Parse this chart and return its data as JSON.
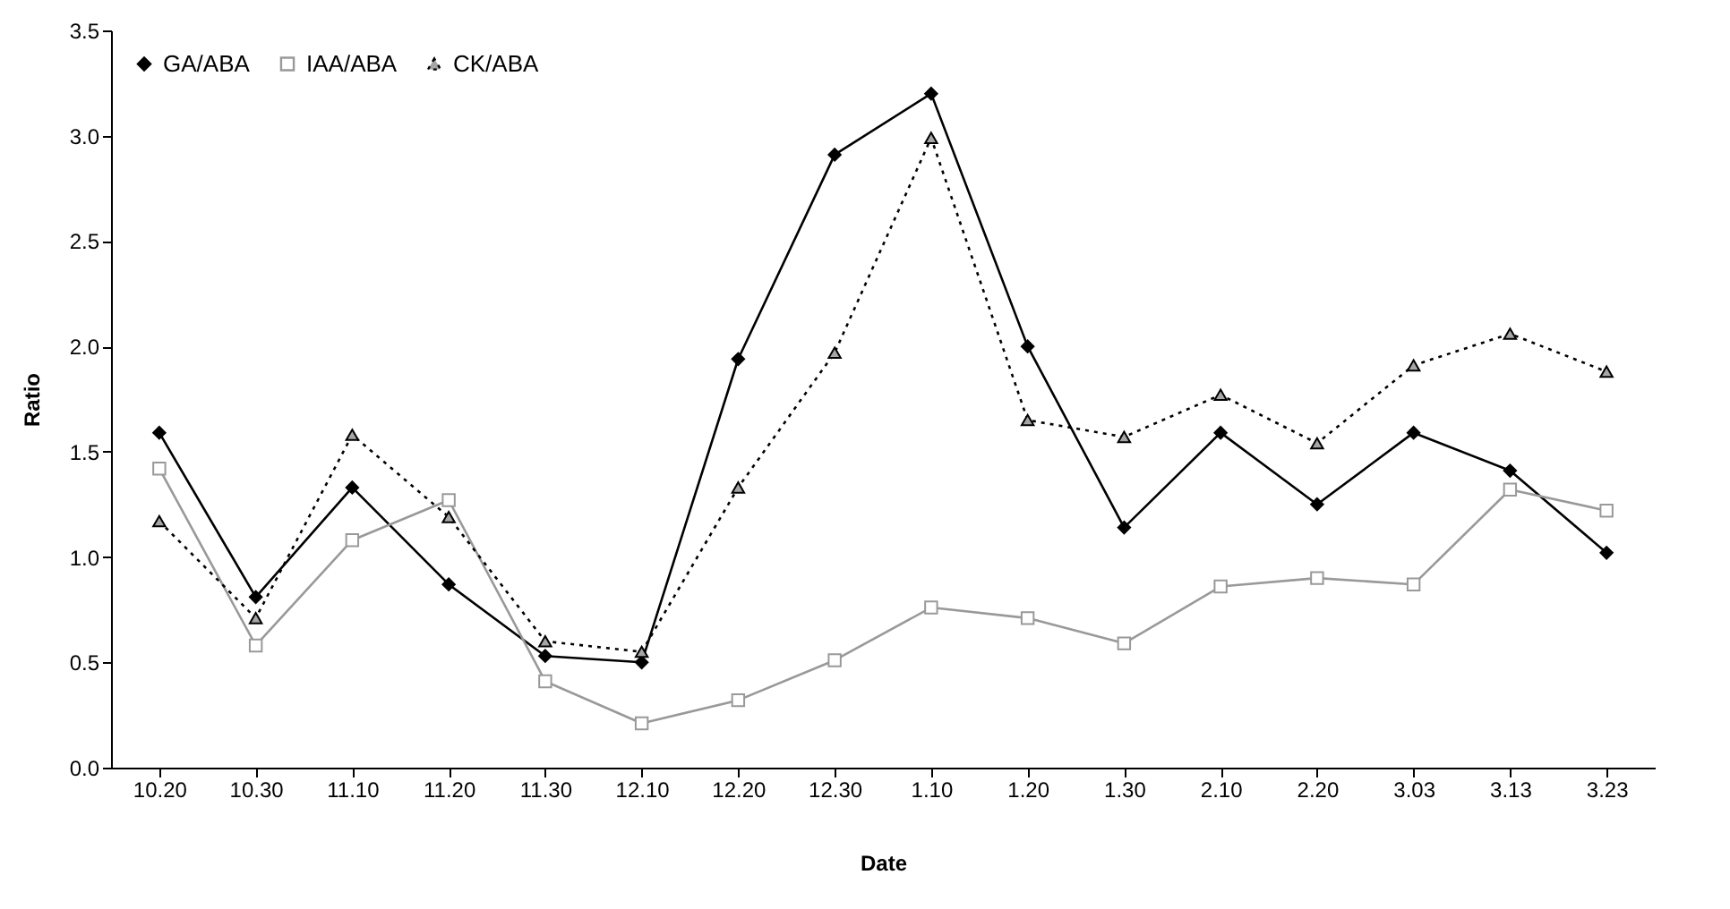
{
  "chart_data": {
    "type": "line",
    "xlabel": "Date",
    "ylabel": "Ratio",
    "categories": [
      "10.20",
      "10.30",
      "11.10",
      "11.20",
      "11.30",
      "12.10",
      "12.20",
      "12.30",
      "1.10",
      "1.20",
      "1.30",
      "2.10",
      "2.20",
      "3.03",
      "3.13",
      "3.23"
    ],
    "series": [
      {
        "name": "GA/ABA",
        "color": "#000000",
        "marker": "diamond",
        "line_style": "solid",
        "values": [
          1.59,
          0.81,
          1.33,
          0.87,
          0.53,
          0.5,
          1.94,
          2.91,
          3.2,
          2.0,
          1.14,
          1.59,
          1.25,
          1.59,
          1.41,
          1.02
        ]
      },
      {
        "name": "IAA/ABA",
        "color": "#999999",
        "marker": "square",
        "line_style": "solid",
        "values": [
          1.42,
          0.58,
          1.08,
          1.27,
          0.41,
          0.21,
          0.32,
          0.51,
          0.76,
          0.71,
          0.59,
          0.86,
          0.9,
          0.87,
          1.32,
          1.22
        ]
      },
      {
        "name": "CK/ABA",
        "color": "#000000",
        "marker": "triangle",
        "line_style": "dotted",
        "values": [
          1.17,
          0.71,
          1.58,
          1.19,
          0.6,
          0.55,
          1.33,
          1.97,
          2.99,
          1.65,
          1.57,
          1.77,
          1.54,
          1.91,
          2.06,
          1.88
        ]
      }
    ],
    "ylim": [
      0,
      3.5
    ],
    "yticks": [
      {
        "value": 0,
        "label": "0.0"
      },
      {
        "value": 0.5,
        "label": "0.5"
      },
      {
        "value": 1,
        "label": "1.0"
      },
      {
        "value": 1.5,
        "label": "1.5"
      },
      {
        "value": 2,
        "label": "2.0"
      },
      {
        "value": 2.5,
        "label": "2.5"
      },
      {
        "value": 3,
        "label": "3.0"
      },
      {
        "value": 3.5,
        "label": "3.5"
      }
    ],
    "grid": false,
    "legend": "top left"
  }
}
